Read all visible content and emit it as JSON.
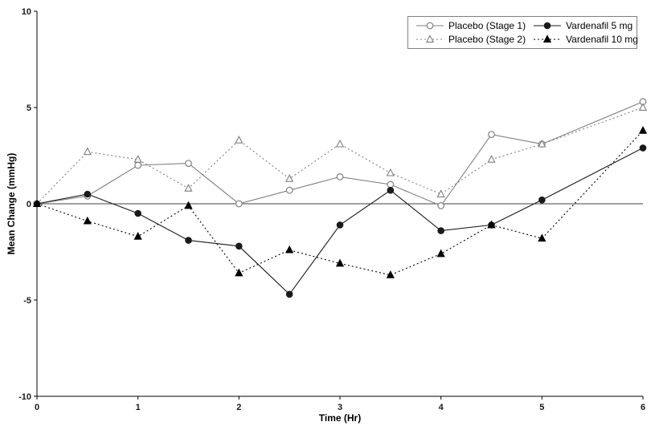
{
  "chart_data": {
    "type": "line",
    "title": "",
    "xlabel": "Time (Hr)",
    "ylabel": "Mean Change (mmHg)",
    "xlim": [
      0,
      6
    ],
    "ylim": [
      -10,
      10
    ],
    "x_ticks": [
      0,
      1,
      2,
      3,
      4,
      5,
      6
    ],
    "y_ticks": [
      -10,
      -5,
      0,
      5,
      10
    ],
    "grid": false,
    "zero_line": true,
    "legend_position": "top-right",
    "x": [
      0,
      0.5,
      1,
      1.5,
      2,
      2.5,
      3,
      3.5,
      4,
      4.5,
      5,
      6
    ],
    "series": [
      {
        "name": "Placebo (Stage 1)",
        "marker": "circle-open",
        "line": "solid",
        "color": "#7f7f7f",
        "values": [
          0,
          0.4,
          2.0,
          2.1,
          0.0,
          0.7,
          1.4,
          1.0,
          -0.1,
          3.6,
          3.1,
          5.3
        ]
      },
      {
        "name": "Placebo (Stage 2)",
        "marker": "triangle-open",
        "line": "dotted",
        "color": "#7f7f7f",
        "values": [
          0,
          2.7,
          2.3,
          0.8,
          3.3,
          1.3,
          3.1,
          1.6,
          0.5,
          2.3,
          3.1,
          5.0
        ]
      },
      {
        "name": "Vardenafil 5 mg",
        "marker": "circle-filled",
        "line": "solid",
        "color": "#1a1a1a",
        "values": [
          0,
          0.5,
          -0.5,
          -1.9,
          -2.2,
          -4.7,
          -1.1,
          0.7,
          -1.4,
          -1.1,
          0.2,
          2.9
        ]
      },
      {
        "name": "Vardenafil 10 mg",
        "marker": "triangle-filled",
        "line": "dotted",
        "color": "#000000",
        "values": [
          0,
          -0.9,
          -1.7,
          -0.1,
          -3.6,
          -2.4,
          -3.1,
          -3.7,
          -2.6,
          -1.1,
          -1.8,
          3.8
        ]
      }
    ]
  }
}
